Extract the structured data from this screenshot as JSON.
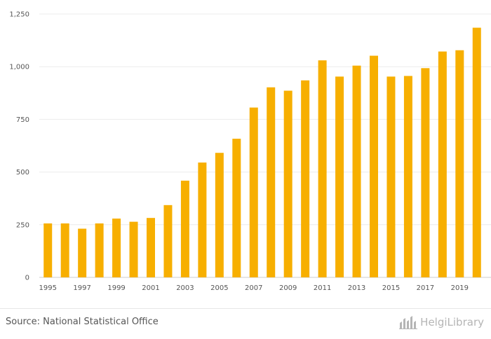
{
  "chart_data": {
    "type": "bar",
    "title": "",
    "xlabel": "",
    "ylabel": "",
    "ylim": [
      0,
      1250
    ],
    "yticks": [
      0,
      250,
      500,
      750,
      1000,
      1250
    ],
    "ytick_labels": [
      "0",
      "250",
      "500",
      "750",
      "1,000",
      "1,250"
    ],
    "xtick_labels": [
      "1995",
      "1997",
      "1999",
      "2001",
      "2003",
      "2005",
      "2007",
      "2009",
      "2011",
      "2013",
      "2015",
      "2017",
      "2019"
    ],
    "categories": [
      "1995",
      "1996",
      "1997",
      "1998",
      "1999",
      "2000",
      "2001",
      "2002",
      "2003",
      "2004",
      "2005",
      "2006",
      "2007",
      "2008",
      "2009",
      "2010",
      "2011",
      "2012",
      "2013",
      "2014",
      "2015",
      "2016",
      "2017",
      "2018",
      "2019",
      "2020"
    ],
    "values": [
      256,
      256,
      231,
      256,
      279,
      264,
      282,
      343,
      459,
      545,
      591,
      658,
      806,
      902,
      886,
      935,
      1030,
      953,
      1005,
      1052,
      953,
      956,
      993,
      1072,
      1078,
      1185
    ],
    "bar_color": "#F7AF00",
    "grid": true
  },
  "footer": {
    "source": "Source: National Statistical Office",
    "brand_icon": "helgi-library-logo-icon",
    "brand_name": "HelgiLibrary"
  }
}
